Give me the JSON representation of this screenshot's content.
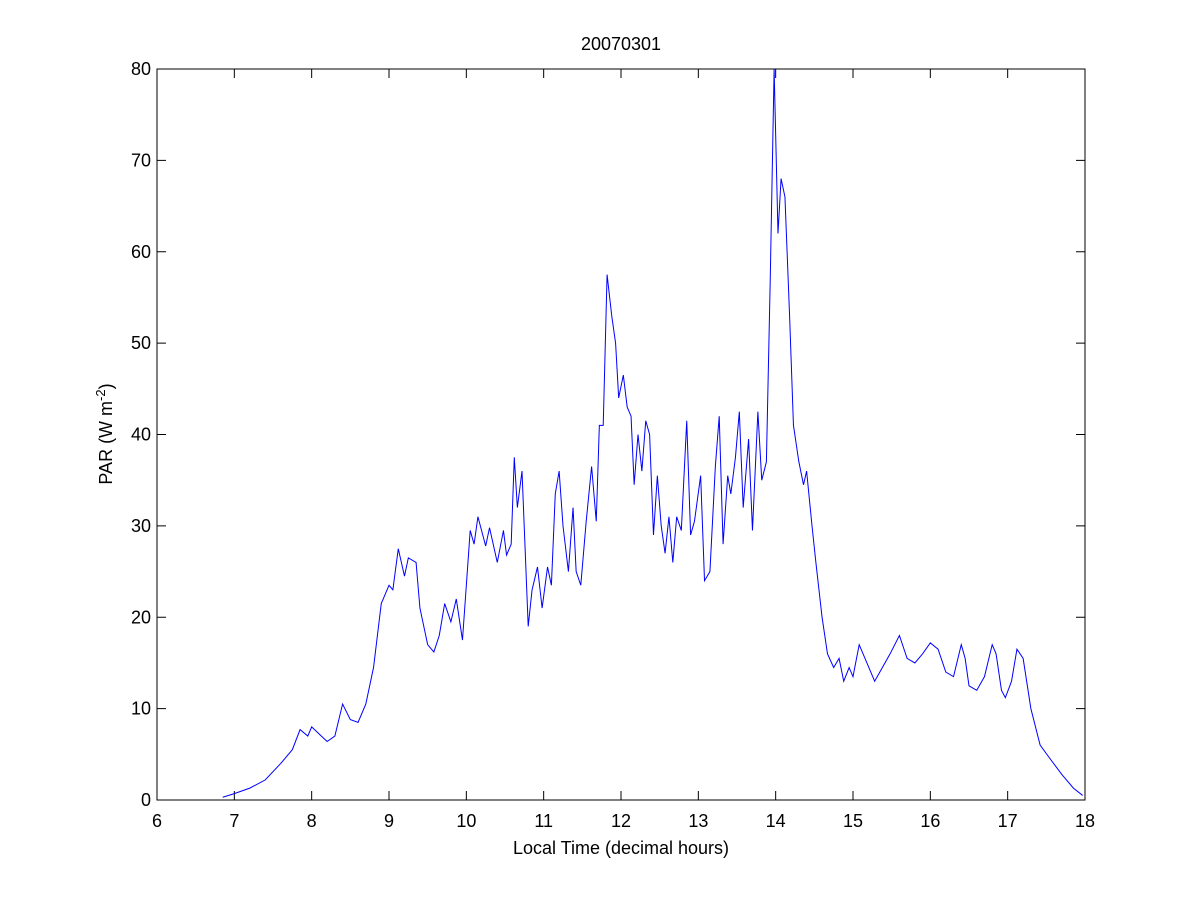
{
  "chart_data": {
    "type": "line",
    "title": "20070301",
    "xlabel": "Local Time (decimal hours)",
    "ylabel": {
      "text": "PAR (W m",
      "superscript": "-2",
      "suffix": ")"
    },
    "x": [
      6.85,
      7.0,
      7.2,
      7.4,
      7.6,
      7.75,
      7.85,
      7.95,
      8.0,
      8.1,
      8.2,
      8.3,
      8.4,
      8.5,
      8.6,
      8.7,
      8.8,
      8.9,
      9.0,
      9.05,
      9.12,
      9.2,
      9.25,
      9.35,
      9.4,
      9.5,
      9.58,
      9.65,
      9.72,
      9.8,
      9.87,
      9.95,
      10.05,
      10.1,
      10.15,
      10.25,
      10.3,
      10.4,
      10.48,
      10.52,
      10.58,
      10.62,
      10.66,
      10.72,
      10.8,
      10.85,
      10.92,
      10.98,
      11.05,
      11.1,
      11.15,
      11.2,
      11.25,
      11.32,
      11.38,
      11.42,
      11.48,
      11.55,
      11.62,
      11.68,
      11.72,
      11.77,
      11.82,
      11.88,
      11.93,
      11.97,
      12.03,
      12.08,
      12.13,
      12.17,
      12.22,
      12.27,
      12.32,
      12.37,
      12.42,
      12.47,
      12.52,
      12.57,
      12.62,
      12.67,
      12.72,
      12.78,
      12.85,
      12.9,
      12.95,
      13.03,
      13.08,
      13.15,
      13.22,
      13.27,
      13.32,
      13.38,
      13.42,
      13.48,
      13.53,
      13.58,
      13.65,
      13.7,
      13.77,
      13.82,
      13.88,
      13.93,
      13.98,
      14.03,
      14.07,
      14.12,
      14.18,
      14.23,
      14.3,
      14.36,
      14.4,
      14.47,
      14.52,
      14.6,
      14.67,
      14.75,
      14.82,
      14.88,
      14.95,
      15.0,
      15.08,
      15.18,
      15.28,
      15.38,
      15.48,
      15.6,
      15.7,
      15.8,
      15.9,
      16.0,
      16.1,
      16.2,
      16.3,
      16.4,
      16.45,
      16.5,
      16.6,
      16.7,
      16.8,
      16.85,
      16.92,
      16.97,
      17.05,
      17.12,
      17.2,
      17.3,
      17.42,
      17.55,
      17.7,
      17.85,
      17.97
    ],
    "series": [
      {
        "color": "#0000ff",
        "values": [
          0.3,
          0.7,
          1.3,
          2.2,
          4.0,
          5.5,
          7.7,
          7.0,
          8.0,
          7.2,
          6.4,
          7.0,
          10.5,
          8.8,
          8.5,
          10.5,
          14.5,
          21.5,
          23.5,
          23.0,
          27.5,
          24.5,
          26.5,
          26.0,
          21.0,
          17.0,
          16.2,
          18.0,
          21.5,
          19.5,
          22.0,
          17.5,
          29.5,
          28.0,
          31.0,
          27.8,
          29.8,
          26.0,
          29.5,
          26.8,
          28.0,
          37.5,
          32.0,
          36.0,
          19.0,
          23.0,
          25.5,
          21.0,
          25.5,
          23.5,
          33.5,
          36.0,
          30.0,
          25.0,
          32.0,
          25.0,
          23.5,
          30.5,
          36.5,
          30.5,
          41.0,
          41.0,
          57.5,
          53.0,
          50.0,
          44.0,
          46.5,
          43.0,
          42.0,
          34.5,
          40.0,
          36.0,
          41.5,
          40.0,
          29.0,
          35.5,
          30.0,
          27.0,
          31.0,
          26.0,
          31.0,
          29.5,
          41.5,
          29.0,
          30.5,
          35.5,
          24.0,
          25.0,
          36.5,
          42.0,
          28.0,
          35.5,
          33.5,
          37.5,
          42.5,
          32.0,
          39.5,
          29.5,
          42.5,
          35.0,
          37.0,
          57.0,
          80.0,
          62.0,
          68.0,
          66.0,
          53.0,
          41.0,
          37.0,
          34.5,
          36.0,
          30.0,
          26.0,
          20.0,
          16.0,
          14.5,
          15.5,
          13.0,
          14.5,
          13.5,
          17.0,
          15.0,
          13.0,
          14.5,
          16.0,
          18.0,
          15.5,
          15.0,
          16.0,
          17.2,
          16.5,
          14.0,
          13.5,
          17.0,
          15.5,
          12.5,
          12.0,
          13.5,
          17.0,
          16.0,
          12.0,
          11.2,
          13.0,
          16.5,
          15.5,
          10.0,
          6.0,
          4.5,
          2.8,
          1.3,
          0.5
        ]
      }
    ],
    "xlim": [
      6,
      18
    ],
    "xticks": [
      6,
      7,
      8,
      9,
      10,
      11,
      12,
      13,
      14,
      15,
      16,
      17,
      18
    ],
    "ylim": [
      0,
      80
    ],
    "yticks": [
      0,
      10,
      20,
      30,
      40,
      50,
      60,
      70,
      80
    ],
    "grid": false
  }
}
